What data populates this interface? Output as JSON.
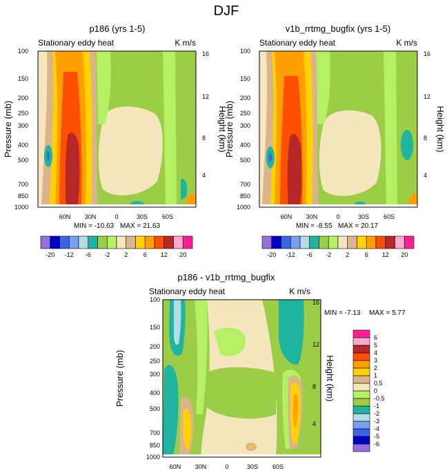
{
  "figure_title": "DJF",
  "chart_data": [
    {
      "type": "heatmap",
      "title": "p186 (yrs 1-5)",
      "left_label": "Stationary eddy heat",
      "right_label": "K m/s",
      "xlabel": "",
      "ylabel": "Pressure (mb)",
      "ylabel_right": "Height (km)",
      "x_ticks": [
        "60N",
        "30N",
        "0",
        "30S",
        "60S"
      ],
      "pressure_ticks": [
        "100",
        "150",
        "200",
        "250",
        "300",
        "400",
        "500",
        "700",
        "850",
        "1000"
      ],
      "height_ticks": [
        "16",
        "12",
        "8",
        "4"
      ],
      "min_label": "MIN = -10.63",
      "max_label": "MAX =  21.63",
      "legend": "bottom"
    },
    {
      "type": "heatmap",
      "title": "v1b_rrtmg_bugfix (yrs 1-5)",
      "left_label": "Stationary eddy heat",
      "right_label": "K m/s",
      "xlabel": "",
      "ylabel": "Pressure (mb)",
      "ylabel_right": "Height (km)",
      "x_ticks": [
        "60N",
        "30N",
        "0",
        "30S",
        "60S"
      ],
      "pressure_ticks": [
        "100",
        "150",
        "200",
        "250",
        "300",
        "400",
        "500",
        "700",
        "850",
        "1000"
      ],
      "height_ticks": [
        "16",
        "12",
        "8",
        "4"
      ],
      "min_label": "MIN = -8.55",
      "max_label": "MAX =  20.17",
      "legend": "bottom"
    },
    {
      "type": "heatmap",
      "title": "p186 - v1b_rrtmg_bugfix",
      "left_label": "Stationary eddy heat",
      "right_label": "K m/s",
      "xlabel": "",
      "ylabel": "Pressure (mb)",
      "ylabel_right": "Height (km)",
      "x_ticks": [
        "60N",
        "30N",
        "0",
        "30S",
        "60S"
      ],
      "pressure_ticks": [
        "100",
        "150",
        "200",
        "250",
        "300",
        "400",
        "500",
        "700",
        "850",
        "1000"
      ],
      "height_ticks": [
        "16",
        "12",
        "8",
        "4"
      ],
      "min_label": "MIN =  -7.13",
      "max_label": "MAX =   5.77",
      "legend": "right"
    }
  ],
  "colorbar_top": {
    "colors": [
      "#9470dc",
      "#0000c8",
      "#3c64e6",
      "#78a0f0",
      "#b4dce6",
      "#1eb4a0",
      "#9ccd46",
      "#b4f064",
      "#f5e6be",
      "#dcb48c",
      "#ffd200",
      "#ffa000",
      "#ff5000",
      "#b42828",
      "#ffaac8",
      "#ff1e96"
    ],
    "labels": [
      "-20",
      "-12",
      "-6",
      "-2",
      "2",
      "6",
      "12",
      "20"
    ]
  },
  "colorbar_diff": {
    "colors": [
      "#9470dc",
      "#0000c8",
      "#3c64e6",
      "#78a0f0",
      "#b4dce6",
      "#1eb4a0",
      "#9ccd46",
      "#b4f064",
      "#f5e6be",
      "#dcb48c",
      "#ffd200",
      "#ffa000",
      "#ff5000",
      "#b42828",
      "#ffaac8",
      "#ff1e96"
    ],
    "labels": [
      "-6",
      "-5",
      "-4",
      "-3",
      "-2",
      "-1",
      "-0.5",
      "0",
      "0.5",
      "1",
      "2",
      "3",
      "4",
      "5",
      "6"
    ]
  },
  "colors": {
    "deep_purple": "#9470dc",
    "navy": "#0000c8",
    "blue": "#3c64e6",
    "light_blue": "#78a0f0",
    "pale_blue": "#b4dce6",
    "teal": "#1eb4a0",
    "olive_green": "#9ccd46",
    "light_green": "#b4f064",
    "cream": "#f5e6be",
    "tan": "#dcb48c",
    "yellow": "#ffd200",
    "orange": "#ffa000",
    "red_orange": "#ff5000",
    "dark_red": "#b42828",
    "pink": "#ffaac8",
    "magenta": "#ff1e96"
  }
}
